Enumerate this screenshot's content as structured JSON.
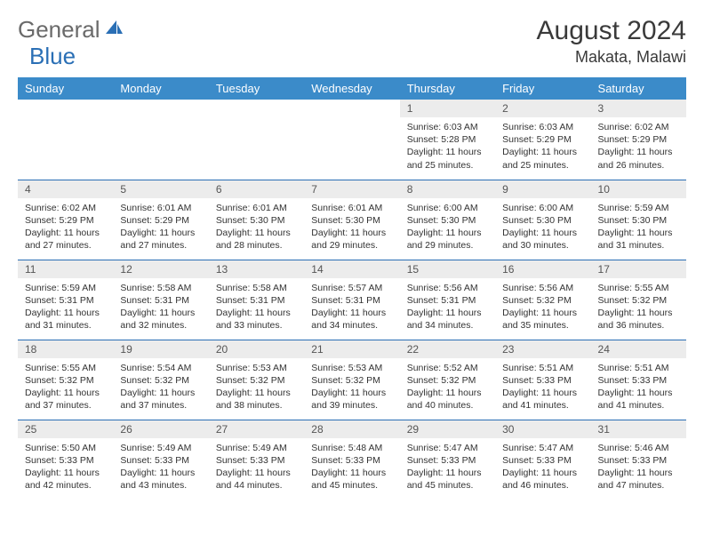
{
  "brand": {
    "part1": "General",
    "part2": "Blue"
  },
  "title": "August 2024",
  "location": "Makata, Malawi",
  "colors": {
    "header_bg": "#3b8bc9",
    "header_text": "#ffffff",
    "row_border": "#2a6fb5",
    "daynum_bg": "#ececec",
    "body_text": "#333333",
    "brand_gray": "#6a6a6a",
    "brand_blue": "#2a6fb5"
  },
  "weekdays": [
    "Sunday",
    "Monday",
    "Tuesday",
    "Wednesday",
    "Thursday",
    "Friday",
    "Saturday"
  ],
  "weeks": [
    [
      {
        "n": "",
        "sr": "",
        "ss": "",
        "dl": ""
      },
      {
        "n": "",
        "sr": "",
        "ss": "",
        "dl": ""
      },
      {
        "n": "",
        "sr": "",
        "ss": "",
        "dl": ""
      },
      {
        "n": "",
        "sr": "",
        "ss": "",
        "dl": ""
      },
      {
        "n": "1",
        "sr": "6:03 AM",
        "ss": "5:28 PM",
        "dl": "11 hours and 25 minutes."
      },
      {
        "n": "2",
        "sr": "6:03 AM",
        "ss": "5:29 PM",
        "dl": "11 hours and 25 minutes."
      },
      {
        "n": "3",
        "sr": "6:02 AM",
        "ss": "5:29 PM",
        "dl": "11 hours and 26 minutes."
      }
    ],
    [
      {
        "n": "4",
        "sr": "6:02 AM",
        "ss": "5:29 PM",
        "dl": "11 hours and 27 minutes."
      },
      {
        "n": "5",
        "sr": "6:01 AM",
        "ss": "5:29 PM",
        "dl": "11 hours and 27 minutes."
      },
      {
        "n": "6",
        "sr": "6:01 AM",
        "ss": "5:30 PM",
        "dl": "11 hours and 28 minutes."
      },
      {
        "n": "7",
        "sr": "6:01 AM",
        "ss": "5:30 PM",
        "dl": "11 hours and 29 minutes."
      },
      {
        "n": "8",
        "sr": "6:00 AM",
        "ss": "5:30 PM",
        "dl": "11 hours and 29 minutes."
      },
      {
        "n": "9",
        "sr": "6:00 AM",
        "ss": "5:30 PM",
        "dl": "11 hours and 30 minutes."
      },
      {
        "n": "10",
        "sr": "5:59 AM",
        "ss": "5:30 PM",
        "dl": "11 hours and 31 minutes."
      }
    ],
    [
      {
        "n": "11",
        "sr": "5:59 AM",
        "ss": "5:31 PM",
        "dl": "11 hours and 31 minutes."
      },
      {
        "n": "12",
        "sr": "5:58 AM",
        "ss": "5:31 PM",
        "dl": "11 hours and 32 minutes."
      },
      {
        "n": "13",
        "sr": "5:58 AM",
        "ss": "5:31 PM",
        "dl": "11 hours and 33 minutes."
      },
      {
        "n": "14",
        "sr": "5:57 AM",
        "ss": "5:31 PM",
        "dl": "11 hours and 34 minutes."
      },
      {
        "n": "15",
        "sr": "5:56 AM",
        "ss": "5:31 PM",
        "dl": "11 hours and 34 minutes."
      },
      {
        "n": "16",
        "sr": "5:56 AM",
        "ss": "5:32 PM",
        "dl": "11 hours and 35 minutes."
      },
      {
        "n": "17",
        "sr": "5:55 AM",
        "ss": "5:32 PM",
        "dl": "11 hours and 36 minutes."
      }
    ],
    [
      {
        "n": "18",
        "sr": "5:55 AM",
        "ss": "5:32 PM",
        "dl": "11 hours and 37 minutes."
      },
      {
        "n": "19",
        "sr": "5:54 AM",
        "ss": "5:32 PM",
        "dl": "11 hours and 37 minutes."
      },
      {
        "n": "20",
        "sr": "5:53 AM",
        "ss": "5:32 PM",
        "dl": "11 hours and 38 minutes."
      },
      {
        "n": "21",
        "sr": "5:53 AM",
        "ss": "5:32 PM",
        "dl": "11 hours and 39 minutes."
      },
      {
        "n": "22",
        "sr": "5:52 AM",
        "ss": "5:32 PM",
        "dl": "11 hours and 40 minutes."
      },
      {
        "n": "23",
        "sr": "5:51 AM",
        "ss": "5:33 PM",
        "dl": "11 hours and 41 minutes."
      },
      {
        "n": "24",
        "sr": "5:51 AM",
        "ss": "5:33 PM",
        "dl": "11 hours and 41 minutes."
      }
    ],
    [
      {
        "n": "25",
        "sr": "5:50 AM",
        "ss": "5:33 PM",
        "dl": "11 hours and 42 minutes."
      },
      {
        "n": "26",
        "sr": "5:49 AM",
        "ss": "5:33 PM",
        "dl": "11 hours and 43 minutes."
      },
      {
        "n": "27",
        "sr": "5:49 AM",
        "ss": "5:33 PM",
        "dl": "11 hours and 44 minutes."
      },
      {
        "n": "28",
        "sr": "5:48 AM",
        "ss": "5:33 PM",
        "dl": "11 hours and 45 minutes."
      },
      {
        "n": "29",
        "sr": "5:47 AM",
        "ss": "5:33 PM",
        "dl": "11 hours and 45 minutes."
      },
      {
        "n": "30",
        "sr": "5:47 AM",
        "ss": "5:33 PM",
        "dl": "11 hours and 46 minutes."
      },
      {
        "n": "31",
        "sr": "5:46 AM",
        "ss": "5:33 PM",
        "dl": "11 hours and 47 minutes."
      }
    ]
  ],
  "labels": {
    "sunrise": "Sunrise: ",
    "sunset": "Sunset: ",
    "daylight": "Daylight: "
  }
}
